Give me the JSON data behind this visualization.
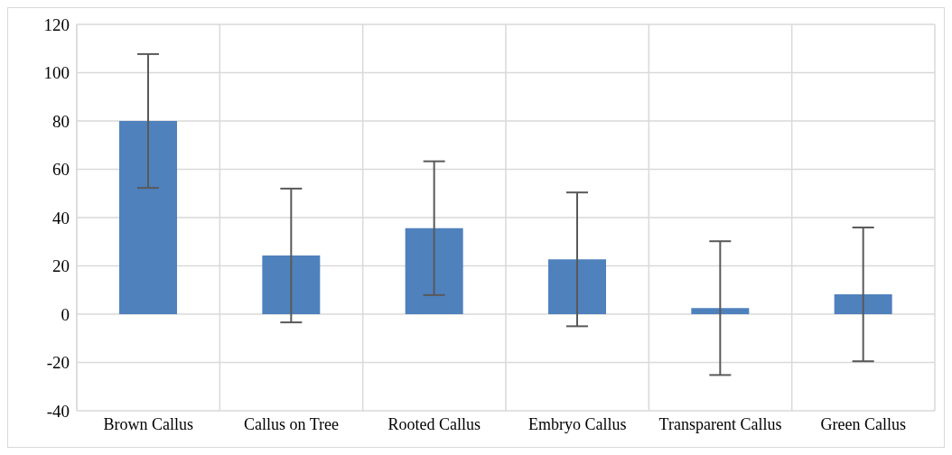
{
  "chart_data": {
    "type": "bar",
    "categories": [
      "Brown Callus",
      "Callus on Tree",
      "Rooted Callus",
      "Embryo Callus",
      "Transparent Callus",
      "Green Callus"
    ],
    "values": [
      80,
      24.3,
      35.6,
      22.7,
      2.5,
      8.2
    ],
    "errors": [
      27.7,
      27.7,
      27.7,
      27.7,
      27.7,
      27.7
    ],
    "color": "#4f81bd",
    "ylim": [
      -40,
      120
    ],
    "yticks": [
      -40,
      -20,
      0,
      20,
      40,
      60,
      80,
      100,
      120
    ],
    "grid": true
  }
}
